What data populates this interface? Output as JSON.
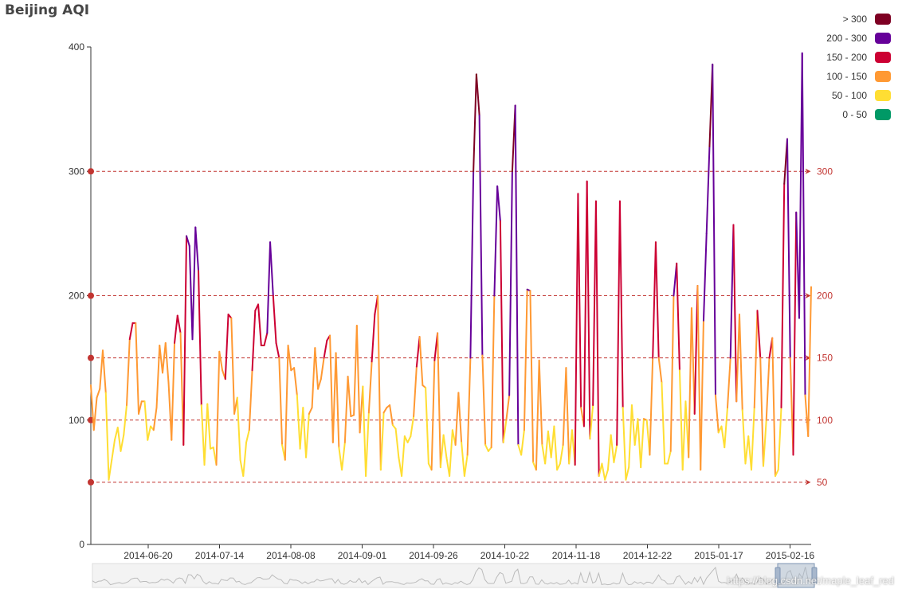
{
  "chart_data": {
    "type": "line",
    "title": "Beijing AQI",
    "ylim": [
      0,
      400
    ],
    "y_ticks": [
      0,
      100,
      200,
      300,
      400
    ],
    "x_tick_labels": [
      "2014-06-20",
      "2014-07-14",
      "2014-08-08",
      "2014-09-01",
      "2014-09-26",
      "2014-10-22",
      "2014-11-18",
      "2014-12-22",
      "2015-01-17",
      "2015-02-16"
    ],
    "legend_placement": "top-right",
    "visual_map": [
      {
        "label": "> 300",
        "color": "#7e0023"
      },
      {
        "label": "200 - 300",
        "color": "#660099"
      },
      {
        "label": "150 - 200",
        "color": "#cc0033"
      },
      {
        "label": "100 - 150",
        "color": "#ff9933"
      },
      {
        "label": "50 - 100",
        "color": "#ffde33"
      },
      {
        "label": "0 - 50",
        "color": "#096"
      }
    ],
    "mark_lines": [
      {
        "value": 50,
        "label": "50"
      },
      {
        "value": 100,
        "label": "100"
      },
      {
        "value": 150,
        "label": "150"
      },
      {
        "value": 200,
        "label": "200"
      },
      {
        "value": 300,
        "label": "300"
      }
    ],
    "series": [
      {
        "values": [
          128,
          92,
          118,
          125,
          156,
          122,
          52,
          68,
          84,
          94,
          75,
          88,
          112,
          165,
          178,
          178,
          105,
          115,
          115,
          84,
          95,
          92,
          110,
          160,
          138,
          162,
          130,
          84,
          162,
          184,
          170,
          80,
          248,
          240,
          165,
          255,
          220,
          112,
          64,
          113,
          77,
          78,
          64,
          155,
          140,
          133,
          185,
          182,
          105,
          118,
          68,
          55,
          82,
          92,
          140,
          188,
          193,
          160,
          160,
          170,
          243,
          200,
          162,
          150,
          80,
          68,
          160,
          140,
          142,
          120,
          77,
          110,
          70,
          105,
          110,
          158,
          125,
          133,
          150,
          164,
          168,
          82,
          154,
          78,
          60,
          82,
          135,
          103,
          104,
          176,
          90,
          127,
          55,
          106,
          147,
          185,
          200,
          60,
          106,
          110,
          112,
          96,
          93,
          70,
          55,
          87,
          82,
          87,
          103,
          143,
          167,
          128,
          126,
          65,
          60,
          148,
          170,
          62,
          88,
          70,
          55,
          92,
          80,
          122,
          82,
          55,
          72,
          150,
          300,
          378,
          345,
          152,
          80,
          75,
          78,
          200,
          288,
          260,
          82,
          100,
          120,
          300,
          353,
          80,
          72,
          92,
          205,
          204,
          66,
          60,
          148,
          80,
          65,
          91,
          70,
          95,
          60,
          65,
          80,
          142,
          65,
          92,
          64,
          282,
          110,
          95,
          292,
          85,
          112,
          276,
          55,
          65,
          52,
          60,
          88,
          66,
          80,
          276,
          110,
          52,
          62,
          112,
          80,
          101,
          62,
          101,
          100,
          72,
          150,
          243,
          150,
          130,
          65,
          65,
          75,
          200,
          226,
          140,
          60,
          115,
          70,
          190,
          105,
          208,
          60,
          180,
          250,
          320,
          386,
          120,
          90,
          95,
          78,
          110,
          150,
          257,
          115,
          185,
          108,
          65,
          87,
          60,
          110,
          188,
          150,
          63,
          100,
          150,
          166,
          55,
          60,
          110,
          290,
          326,
          150,
          72,
          267,
          182,
          395,
          120,
          87,
          207
        ]
      }
    ]
  },
  "watermark": "https://blog.csdn.net/maple_leaf_red"
}
